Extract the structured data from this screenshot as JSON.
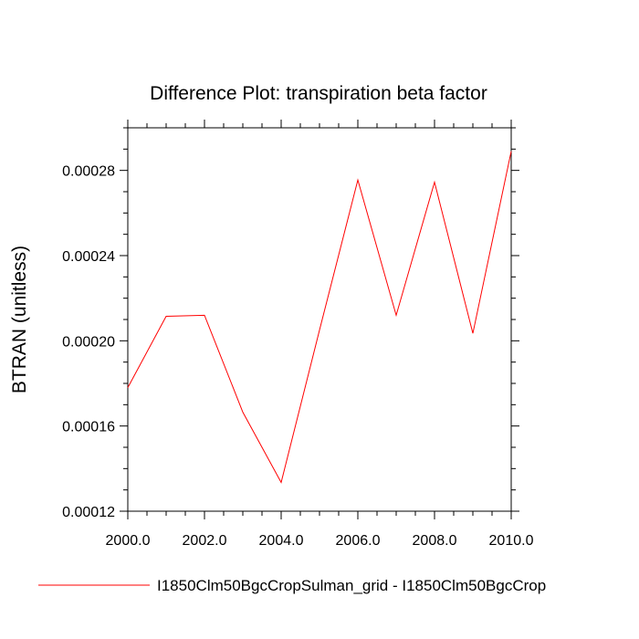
{
  "chart_data": {
    "type": "line",
    "title": "Difference Plot: transpiration beta factor",
    "xlabel": "",
    "ylabel": "BTRAN  (unitless)",
    "xlim": [
      2000,
      2010
    ],
    "ylim": [
      0.00012,
      0.0003
    ],
    "xticks": [
      2000,
      2002,
      2004,
      2006,
      2008,
      2010
    ],
    "xtick_labels": [
      "2000.0",
      "2002.0",
      "2004.0",
      "2006.0",
      "2008.0",
      "2010.0"
    ],
    "yticks": [
      0.00012,
      0.00016,
      0.0002,
      0.00024,
      0.00028
    ],
    "ytick_labels": [
      "0.00012",
      "0.00016",
      "0.00020",
      "0.00024",
      "0.00028"
    ],
    "grid": false,
    "legend_position": "bottom",
    "series": [
      {
        "name": "I1850Clm50BgcCropSulman_grid - I1850Clm50BgcCrop",
        "color": "#ff0000",
        "x": [
          2000,
          2001,
          2002,
          2003,
          2004,
          2005,
          2006,
          2007,
          2008,
          2009,
          2010
        ],
        "y": [
          0.000178,
          0.0002115,
          0.000212,
          0.0001665,
          0.0001335,
          0.000205,
          0.0002755,
          0.000212,
          0.0002745,
          0.0002035,
          0.000289
        ]
      }
    ]
  }
}
